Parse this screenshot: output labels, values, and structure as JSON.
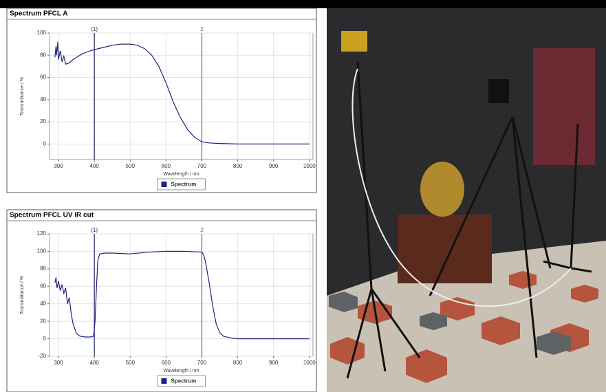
{
  "chart_data": [
    {
      "type": "line",
      "title": "Spectrum PFCL A",
      "x_label": "Wavelength / nm",
      "y_label": "Transmittance / %",
      "x": [
        290,
        293,
        295,
        298,
        300,
        305,
        310,
        315,
        320,
        330,
        340,
        350,
        365,
        380,
        400,
        425,
        450,
        475,
        500,
        520,
        540,
        560,
        580,
        600,
        620,
        640,
        660,
        680,
        700,
        720,
        750,
        800,
        850,
        900,
        950,
        1000
      ],
      "series": [
        {
          "name": "Spectrum",
          "color": "#1c2380",
          "values": [
            78,
            88,
            80,
            92,
            76,
            84,
            74,
            79,
            72,
            73,
            76,
            78,
            81,
            83,
            85,
            87,
            89,
            90,
            90,
            89,
            86,
            80,
            70,
            55,
            38,
            24,
            13,
            6,
            2,
            1,
            0.5,
            0,
            0,
            0,
            0,
            0
          ]
        }
      ],
      "markers": [
        {
          "x": 400,
          "label": "(1)",
          "color": "#222244"
        },
        {
          "x": 700,
          "label": "2",
          "color": "#a05050"
        }
      ],
      "xlim": [
        275,
        1010
      ],
      "ylim": [
        -14,
        100
      ],
      "xticks": [
        300,
        400,
        500,
        600,
        700,
        800,
        900,
        1000
      ],
      "yticks": [
        0,
        20,
        40,
        60,
        80,
        100
      ],
      "grid": true
    },
    {
      "type": "line",
      "title": "Spectrum PFCL UV IR cut",
      "x_label": "Wavelength / nm",
      "y_label": "Transmittance / %",
      "x": [
        290,
        293,
        296,
        300,
        305,
        310,
        315,
        320,
        325,
        330,
        335,
        340,
        350,
        360,
        375,
        390,
        398,
        402,
        406,
        410,
        415,
        430,
        450,
        500,
        550,
        600,
        650,
        700,
        705,
        710,
        720,
        730,
        740,
        750,
        760,
        780,
        800,
        900,
        1000
      ],
      "series": [
        {
          "name": "Spectrum",
          "color": "#1c2380",
          "values": [
            64,
            70,
            58,
            66,
            55,
            62,
            52,
            58,
            40,
            47,
            30,
            18,
            6,
            3,
            2,
            2,
            3,
            20,
            60,
            90,
            97,
            98,
            98,
            97,
            99,
            100,
            100,
            99,
            96,
            88,
            65,
            38,
            17,
            7,
            3,
            1,
            0,
            0,
            0
          ]
        }
      ],
      "markers": [
        {
          "x": 400,
          "label": "(1)",
          "color": "#222266"
        },
        {
          "x": 700,
          "label": "2",
          "color": "#a05050"
        }
      ],
      "xlim": [
        275,
        1010
      ],
      "ylim": [
        -20,
        120
      ],
      "xticks": [
        300,
        400,
        500,
        600,
        700,
        800,
        900,
        1000
      ],
      "yticks": [
        -20,
        0,
        20,
        40,
        60,
        80,
        100,
        120
      ],
      "grid": true
    }
  ]
}
